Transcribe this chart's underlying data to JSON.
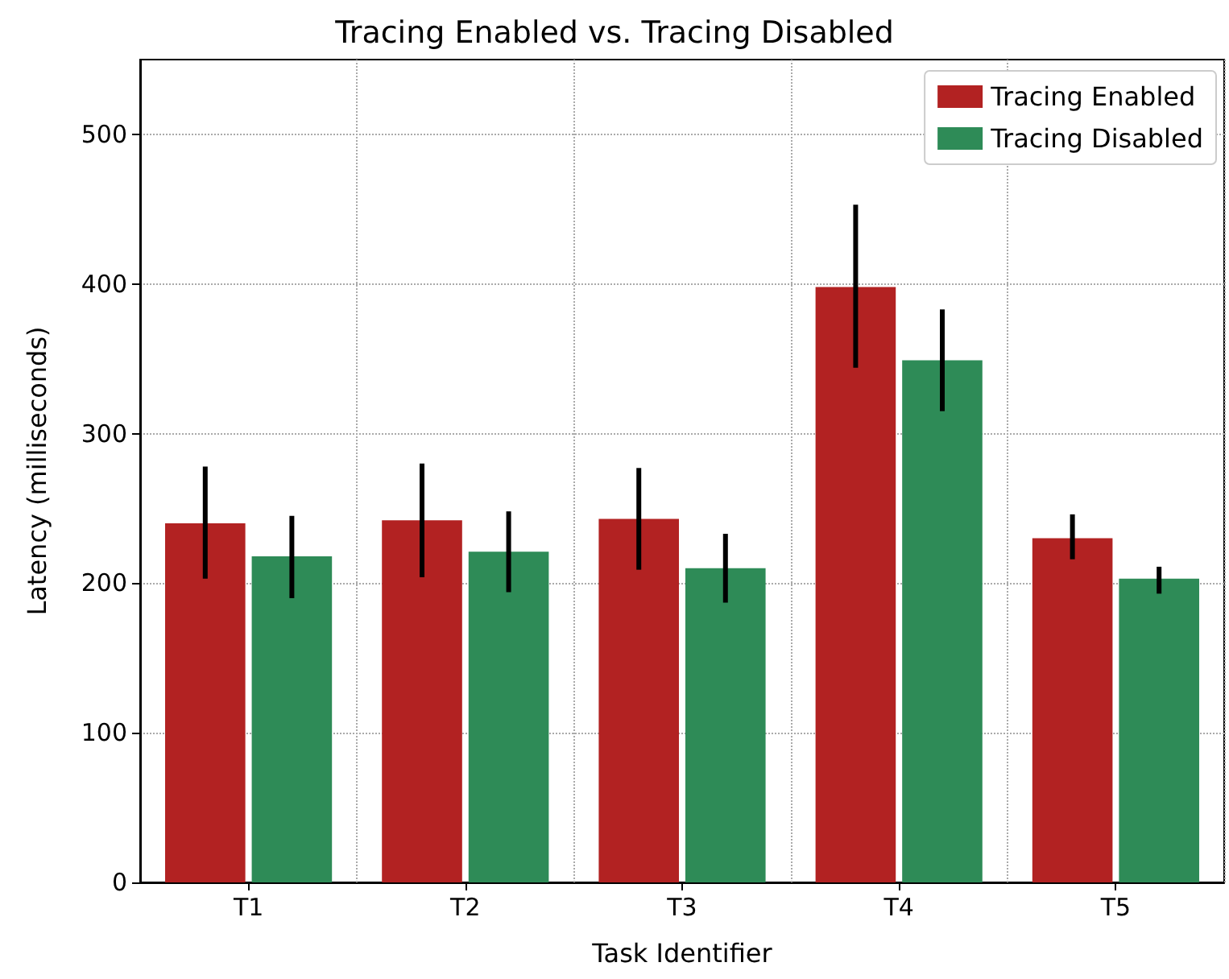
{
  "chart_data": {
    "type": "bar",
    "title": "Tracing Enabled vs. Tracing Disabled",
    "xlabel": "Task Identifier",
    "ylabel": "Latency (milliseconds)",
    "categories": [
      "T1",
      "T2",
      "T3",
      "T4",
      "T5"
    ],
    "series": [
      {
        "name": "Tracing Enabled",
        "color": "#b22222",
        "values": [
          240,
          242,
          243,
          398,
          230
        ],
        "errors": [
          [
            203,
            278
          ],
          [
            204,
            280
          ],
          [
            209,
            277
          ],
          [
            344,
            453
          ],
          [
            216,
            246
          ]
        ]
      },
      {
        "name": "Tracing Disabled",
        "color": "#2e8b57",
        "values": [
          218,
          221,
          210,
          349,
          203
        ],
        "errors": [
          [
            190,
            245
          ],
          [
            194,
            248
          ],
          [
            187,
            233
          ],
          [
            315,
            383
          ],
          [
            193,
            211
          ]
        ]
      }
    ],
    "ylim": [
      0,
      550
    ],
    "yticks": [
      0,
      100,
      200,
      300,
      400,
      500
    ],
    "grid": true,
    "legend": "top right"
  }
}
